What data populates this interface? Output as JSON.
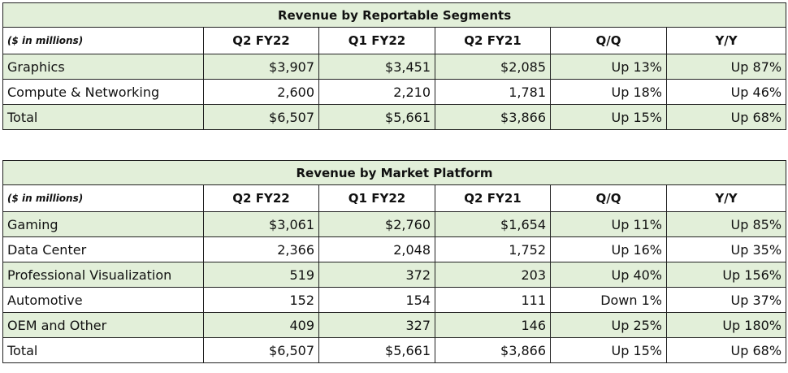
{
  "tables": [
    {
      "title": "Revenue by Reportable Segments",
      "unit": "($ in millions)",
      "columns": [
        "Q2 FY22",
        "Q1 FY22",
        "Q2 FY21",
        "Q/Q",
        "Y/Y"
      ],
      "rows": [
        {
          "label": "Graphics",
          "values": [
            "$3,907",
            "$3,451",
            "$2,085",
            "Up 13%",
            "Up 87%"
          ]
        },
        {
          "label": "Compute & Networking",
          "values": [
            "2,600",
            "2,210",
            "1,781",
            "Up 18%",
            "Up 46%"
          ]
        },
        {
          "label": "Total",
          "values": [
            "$6,507",
            "$5,661",
            "$3,866",
            "Up 15%",
            "Up 68%"
          ]
        }
      ]
    },
    {
      "title": "Revenue by Market Platform",
      "unit": "($ in millions)",
      "columns": [
        "Q2 FY22",
        "Q1 FY22",
        "Q2 FY21",
        "Q/Q",
        "Y/Y"
      ],
      "rows": [
        {
          "label": "Gaming",
          "values": [
            "$3,061",
            "$2,760",
            "$1,654",
            "Up 11%",
            "Up 85%"
          ]
        },
        {
          "label": "Data Center",
          "values": [
            "2,366",
            "2,048",
            "1,752",
            "Up 16%",
            "Up 35%"
          ]
        },
        {
          "label": "Professional Visualization",
          "values": [
            "519",
            "372",
            "203",
            "Up 40%",
            "Up 156%"
          ]
        },
        {
          "label": "Automotive",
          "values": [
            "152",
            "154",
            "111",
            "Down 1%",
            "Up 37%"
          ]
        },
        {
          "label": "OEM and Other",
          "values": [
            "409",
            "327",
            "146",
            "Up 25%",
            "Up 180%"
          ]
        },
        {
          "label": "Total",
          "values": [
            "$6,507",
            "$5,661",
            "$3,866",
            "Up 15%",
            "Up 68%"
          ]
        }
      ]
    }
  ],
  "colors": {
    "shade": "#e2efd9",
    "border": "#222222"
  }
}
